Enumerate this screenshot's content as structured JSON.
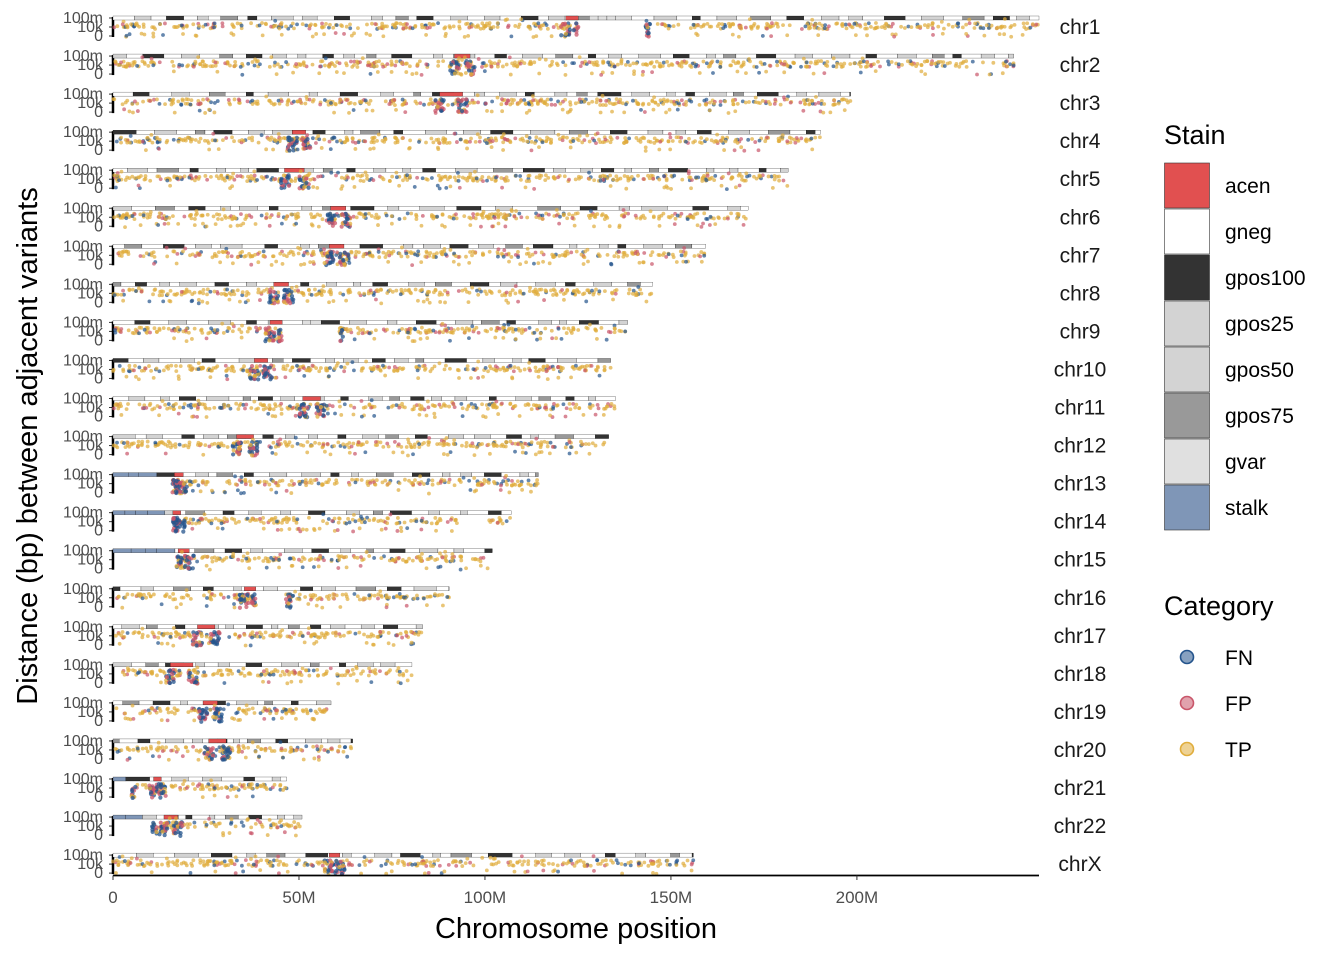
{
  "chart_data": {
    "type": "scatter",
    "xlabel": "Chromosome position",
    "ylabel": "Distance (bp) between adjacent variants",
    "x_ticks": [
      {
        "value": 0,
        "label": "0"
      },
      {
        "value": 50000000,
        "label": "50M"
      },
      {
        "value": 100000000,
        "label": "100M"
      },
      {
        "value": 150000000,
        "label": "150M"
      },
      {
        "value": 200000000,
        "label": "200M"
      }
    ],
    "xlim": [
      0,
      248956422
    ],
    "y_scale": "log (per-chromosome facet)",
    "y_ticks": [
      "0",
      "10k",
      "100m"
    ],
    "chromosomes": [
      {
        "name": "chr1",
        "length": 248956422,
        "centromere": [
          121700000,
          125100000
        ],
        "gap": [
          125100000,
          143200000
        ]
      },
      {
        "name": "chr2",
        "length": 242193529,
        "centromere": [
          91800000,
          96000000
        ],
        "gap": null
      },
      {
        "name": "chr3",
        "length": 198295559,
        "centromere": [
          87800000,
          94000000
        ],
        "gap": null
      },
      {
        "name": "chr4",
        "length": 190214555,
        "centromere": [
          48200000,
          51800000
        ],
        "gap": null
      },
      {
        "name": "chr5",
        "length": 181538259,
        "centromere": [
          46100000,
          51400000
        ],
        "gap": null
      },
      {
        "name": "chr6",
        "length": 170805979,
        "centromere": [
          58500000,
          62600000
        ],
        "gap": null
      },
      {
        "name": "chr7",
        "length": 159345973,
        "centromere": [
          58100000,
          62100000
        ],
        "gap": null
      },
      {
        "name": "chr8",
        "length": 145138636,
        "centromere": [
          43200000,
          47200000
        ],
        "gap": null
      },
      {
        "name": "chr9",
        "length": 138394717,
        "centromere": [
          42200000,
          45500000
        ],
        "gap": [
          45500000,
          60800000
        ]
      },
      {
        "name": "chr10",
        "length": 133797422,
        "centromere": [
          38000000,
          41600000
        ],
        "gap": null
      },
      {
        "name": "chr11",
        "length": 135086622,
        "centromere": [
          51000000,
          55800000
        ],
        "gap": null
      },
      {
        "name": "chr12",
        "length": 133275309,
        "centromere": [
          33200000,
          37800000
        ],
        "gap": null
      },
      {
        "name": "chr13",
        "length": 114364328,
        "centromere": [
          16500000,
          18900000
        ],
        "gap": [
          0,
          16000000
        ]
      },
      {
        "name": "chr14",
        "length": 107043718,
        "centromere": [
          16100000,
          18200000
        ],
        "gap": [
          0,
          16000000
        ]
      },
      {
        "name": "chr15",
        "length": 101991189,
        "centromere": [
          17500000,
          20500000
        ],
        "gap": [
          0,
          17000000
        ]
      },
      {
        "name": "chr16",
        "length": 90338345,
        "centromere": [
          35300000,
          38400000
        ],
        "gap": [
          38400000,
          46500000
        ]
      },
      {
        "name": "chr17",
        "length": 83257441,
        "centromere": [
          22700000,
          27400000
        ],
        "gap": null
      },
      {
        "name": "chr18",
        "length": 80373285,
        "centromere": [
          15400000,
          21500000
        ],
        "gap": null
      },
      {
        "name": "chr19",
        "length": 58617616,
        "centromere": [
          24200000,
          28100000
        ],
        "gap": null
      },
      {
        "name": "chr20",
        "length": 64444167,
        "centromere": [
          25700000,
          30400000
        ],
        "gap": null
      },
      {
        "name": "chr21",
        "length": 46709983,
        "centromere": [
          10900000,
          13000000
        ],
        "gap": [
          0,
          5000000
        ]
      },
      {
        "name": "chr22",
        "length": 50818468,
        "centromere": [
          13700000,
          17400000
        ],
        "gap": [
          0,
          10500000
        ]
      },
      {
        "name": "chrX",
        "length": 156040895,
        "centromere": [
          58100000,
          61000000
        ],
        "gap": null
      }
    ],
    "legends": [
      {
        "title": "Stain",
        "type": "fill",
        "items": [
          {
            "label": "acen",
            "color": "#E15050"
          },
          {
            "label": "gneg",
            "color": "#FFFFFF"
          },
          {
            "label": "gpos100",
            "color": "#333333"
          },
          {
            "label": "gpos25",
            "color": "#D3D3D3"
          },
          {
            "label": "gpos50",
            "color": "#D3D3D3"
          },
          {
            "label": "gpos75",
            "color": "#999999"
          },
          {
            "label": "gvar",
            "color": "#E0E0E0"
          },
          {
            "label": "stalk",
            "color": "#7F96B7"
          }
        ]
      },
      {
        "title": "Category",
        "type": "point",
        "items": [
          {
            "label": "FN",
            "color": "#24548C"
          },
          {
            "label": "FP",
            "color": "#C9566A"
          },
          {
            "label": "TP",
            "color": "#E0AD3C"
          }
        ]
      }
    ]
  }
}
